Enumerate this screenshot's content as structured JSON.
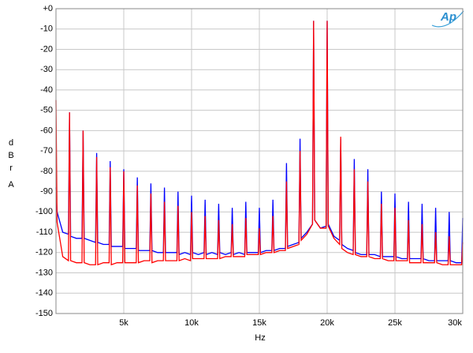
{
  "chart_data": {
    "type": "line",
    "logo": "Ap",
    "y_label": [
      "dBr",
      "A"
    ],
    "x_label": "Hz",
    "xlim": [
      0,
      30000
    ],
    "ylim": [
      -150,
      0
    ],
    "xticks": [
      {
        "value": 5000,
        "label": "5k"
      },
      {
        "value": 10000,
        "label": "10k"
      },
      {
        "value": 15000,
        "label": "15k"
      },
      {
        "value": 20000,
        "label": "20k"
      },
      {
        "value": 25000,
        "label": "25k"
      },
      {
        "value": 30000,
        "label": "30k"
      }
    ],
    "yticks": [
      {
        "value": 0,
        "label": "+0"
      },
      -10,
      -20,
      -30,
      -40,
      -50,
      -60,
      -70,
      -80,
      -90,
      -100,
      -110,
      -120,
      -130,
      -140,
      -150
    ],
    "grid": true,
    "x": [
      0,
      80,
      500,
      920,
      1000,
      1080,
      1500,
      1920,
      2000,
      2080,
      2500,
      2920,
      3000,
      3080,
      3500,
      3920,
      4000,
      4080,
      4500,
      4920,
      5000,
      5080,
      5500,
      5920,
      6000,
      6080,
      6500,
      6920,
      7000,
      7080,
      7500,
      7920,
      8000,
      8080,
      8500,
      8920,
      9000,
      9080,
      9500,
      9920,
      10000,
      10080,
      10500,
      10920,
      11000,
      11080,
      11500,
      11920,
      12000,
      12080,
      12500,
      12920,
      13000,
      13080,
      13500,
      13920,
      14000,
      14080,
      14500,
      14920,
      15000,
      15080,
      15500,
      15920,
      16000,
      16080,
      16500,
      16920,
      17000,
      17080,
      17500,
      17920,
      18000,
      18080,
      18500,
      18920,
      19000,
      19080,
      19500,
      19920,
      20000,
      20080,
      20500,
      20920,
      21000,
      21080,
      21500,
      21920,
      22000,
      22080,
      22500,
      22920,
      23000,
      23080,
      23500,
      23920,
      24000,
      24080,
      24500,
      24920,
      25000,
      25080,
      25500,
      25920,
      26000,
      26080,
      26500,
      26920,
      27000,
      27080,
      27500,
      27920,
      28000,
      28080,
      28500,
      28920,
      29000,
      29080,
      29500,
      29920,
      30000
    ],
    "series": [
      {
        "color": "#0000ff",
        "values": [
          -88,
          -100,
          -110,
          -111,
          -51,
          -112,
          -113,
          -113,
          -60,
          -113,
          -114,
          -115,
          -71,
          -115,
          -116,
          -116,
          -75,
          -117,
          -117,
          -117,
          -79,
          -118,
          -118,
          -118,
          -83,
          -119,
          -119,
          -119,
          -86,
          -119,
          -120,
          -120,
          -88,
          -120,
          -120,
          -120,
          -90,
          -121,
          -120,
          -121,
          -92,
          -120,
          -121,
          -120,
          -94,
          -121,
          -120,
          -121,
          -96,
          -120,
          -121,
          -120,
          -98,
          -121,
          -120,
          -121,
          -95,
          -120,
          -120,
          -120,
          -98,
          -120,
          -119,
          -119,
          -94,
          -119,
          -118,
          -118,
          -76,
          -117,
          -116,
          -115,
          -64,
          -113,
          -110,
          -106,
          -6,
          -104,
          -108,
          -107,
          -6,
          -106,
          -112,
          -114,
          -64,
          -116,
          -118,
          -119,
          -74,
          -120,
          -121,
          -121,
          -79,
          -121,
          -121,
          -122,
          -90,
          -122,
          -122,
          -122,
          -91,
          -122,
          -123,
          -123,
          -95,
          -123,
          -123,
          -123,
          -96,
          -123,
          -124,
          -124,
          -98,
          -124,
          -124,
          -124,
          -100,
          -124,
          -125,
          -125,
          -103
        ]
      },
      {
        "color": "#ff0000",
        "values": [
          -45,
          -105,
          -122,
          -124,
          -51,
          -124,
          -125,
          -125,
          -60,
          -125,
          -126,
          -126,
          -73,
          -126,
          -125,
          -125,
          -78,
          -126,
          -125,
          -125,
          -80,
          -125,
          -125,
          -125,
          -87,
          -125,
          -124,
          -124,
          -91,
          -125,
          -124,
          -124,
          -95,
          -124,
          -124,
          -124,
          -97,
          -124,
          -123,
          -124,
          -100,
          -123,
          -123,
          -123,
          -102,
          -123,
          -123,
          -123,
          -104,
          -123,
          -122,
          -122,
          -106,
          -122,
          -122,
          -122,
          -103,
          -121,
          -121,
          -121,
          -108,
          -121,
          -120,
          -120,
          -102,
          -120,
          -119,
          -119,
          -85,
          -118,
          -117,
          -116,
          -70,
          -114,
          -111,
          -106,
          -6,
          -104,
          -108,
          -108,
          -6,
          -107,
          -113,
          -116,
          -63,
          -118,
          -120,
          -121,
          -79,
          -121,
          -122,
          -122,
          -85,
          -122,
          -123,
          -123,
          -96,
          -123,
          -124,
          -124,
          -98,
          -124,
          -124,
          -124,
          -104,
          -125,
          -125,
          -125,
          -106,
          -125,
          -125,
          -125,
          -110,
          -125,
          -126,
          -126,
          -112,
          -126,
          -126,
          -126,
          -115
        ]
      }
    ]
  }
}
